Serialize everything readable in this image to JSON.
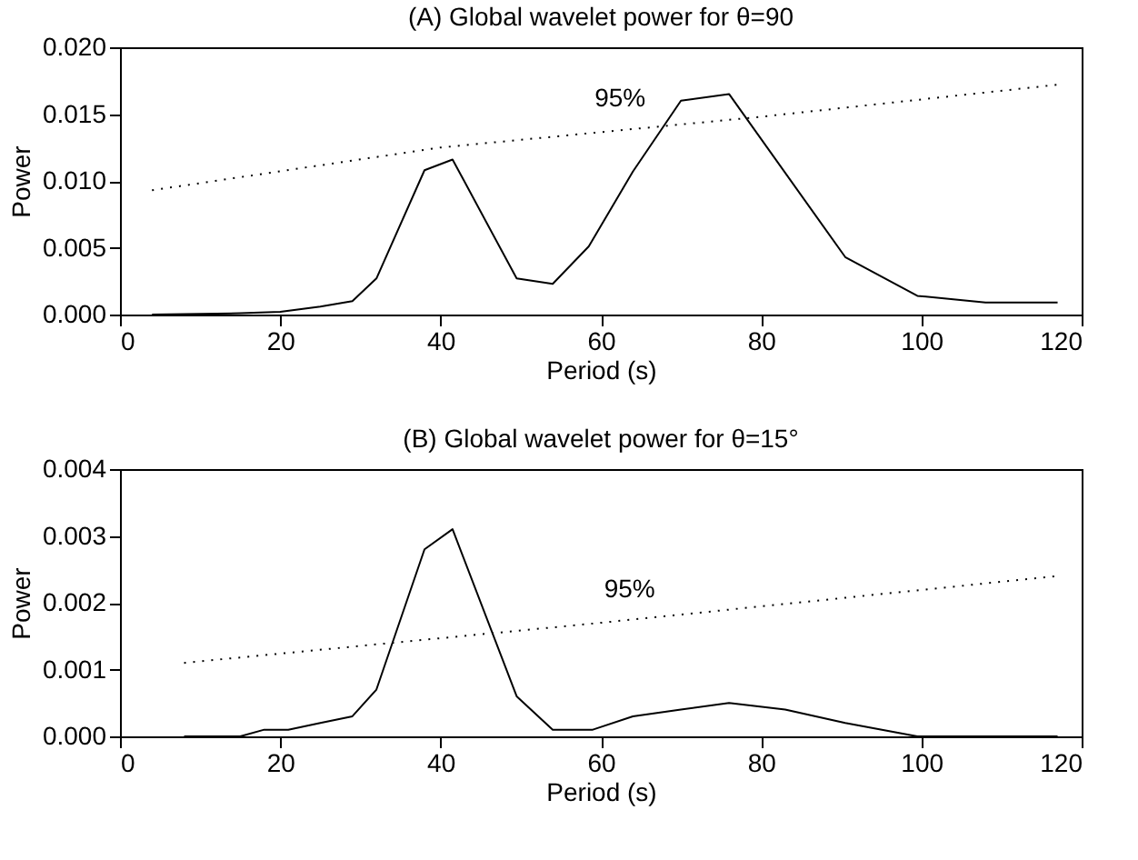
{
  "chart_data": [
    {
      "type": "line",
      "title": "(A) Global wavelet power for θ=90",
      "xlabel": "Period (s)",
      "ylabel": "Power",
      "xlim": [
        0,
        120
      ],
      "xticks": [
        0,
        20,
        40,
        60,
        80,
        100,
        120
      ],
      "ylim": [
        0,
        0.02
      ],
      "yticks": [
        {
          "value": 0,
          "label": "0.000"
        },
        {
          "value": 0.005,
          "label": "0.005"
        },
        {
          "value": 0.01,
          "label": "0.010"
        },
        {
          "value": 0.015,
          "label": "0.015"
        },
        {
          "value": 0.02,
          "label": "0.020"
        }
      ],
      "grid": false,
      "series": [
        {
          "color": "#000000",
          "line_style": "solid",
          "x": [
            4,
            15,
            20,
            25,
            29,
            32,
            38,
            41.5,
            49.5,
            54,
            58.5,
            64,
            70,
            76,
            90.5,
            99.5,
            108,
            117
          ],
          "values": [
            0,
            0.0001,
            0.0002,
            0.0006,
            0.001,
            0.0027,
            0.0108,
            0.0116,
            0.0027,
            0.0023,
            0.0051,
            0.0107,
            0.016,
            0.0165,
            0.0043,
            0.0014,
            0.0009,
            0.0009
          ]
        },
        {
          "color": "#000000",
          "line_style": "dotted",
          "x": [
            4,
            40,
            80,
            117
          ],
          "values": [
            0.0093,
            0.0125,
            0.0148,
            0.0172
          ]
        }
      ],
      "annotations": [
        "95%"
      ]
    },
    {
      "type": "line",
      "title": "(B) Global wavelet power for θ=15°",
      "xlabel": "Period (s)",
      "ylabel": "Power",
      "xlim": [
        0,
        120
      ],
      "xticks": [
        0,
        20,
        40,
        60,
        80,
        100,
        120
      ],
      "ylim": [
        0,
        0.004
      ],
      "yticks": [
        {
          "value": 0,
          "label": "0.000"
        },
        {
          "value": 0.001,
          "label": "0.001"
        },
        {
          "value": 0.002,
          "label": "0.002"
        },
        {
          "value": 0.003,
          "label": "0.003"
        },
        {
          "value": 0.004,
          "label": "0.004"
        }
      ],
      "grid": false,
      "series": [
        {
          "color": "#000000",
          "line_style": "solid",
          "x": [
            8,
            15,
            18,
            21,
            25,
            29,
            32,
            38,
            41.5,
            49.5,
            54,
            59,
            64,
            70,
            76,
            83,
            90.5,
            99.5,
            117
          ],
          "values": [
            0,
            0,
            0.0001,
            0.0001,
            0.0002,
            0.0003,
            0.0007,
            0.0028,
            0.0031,
            0.0006,
            0.0001,
            0.0001,
            0.0003,
            0.0004,
            0.0005,
            0.0004,
            0.0002,
            0,
            0
          ]
        },
        {
          "color": "#000000",
          "line_style": "dotted",
          "x": [
            8,
            60,
            117
          ],
          "values": [
            0.0011,
            0.0017,
            0.0024
          ]
        }
      ],
      "annotations": [
        "95%"
      ]
    }
  ]
}
